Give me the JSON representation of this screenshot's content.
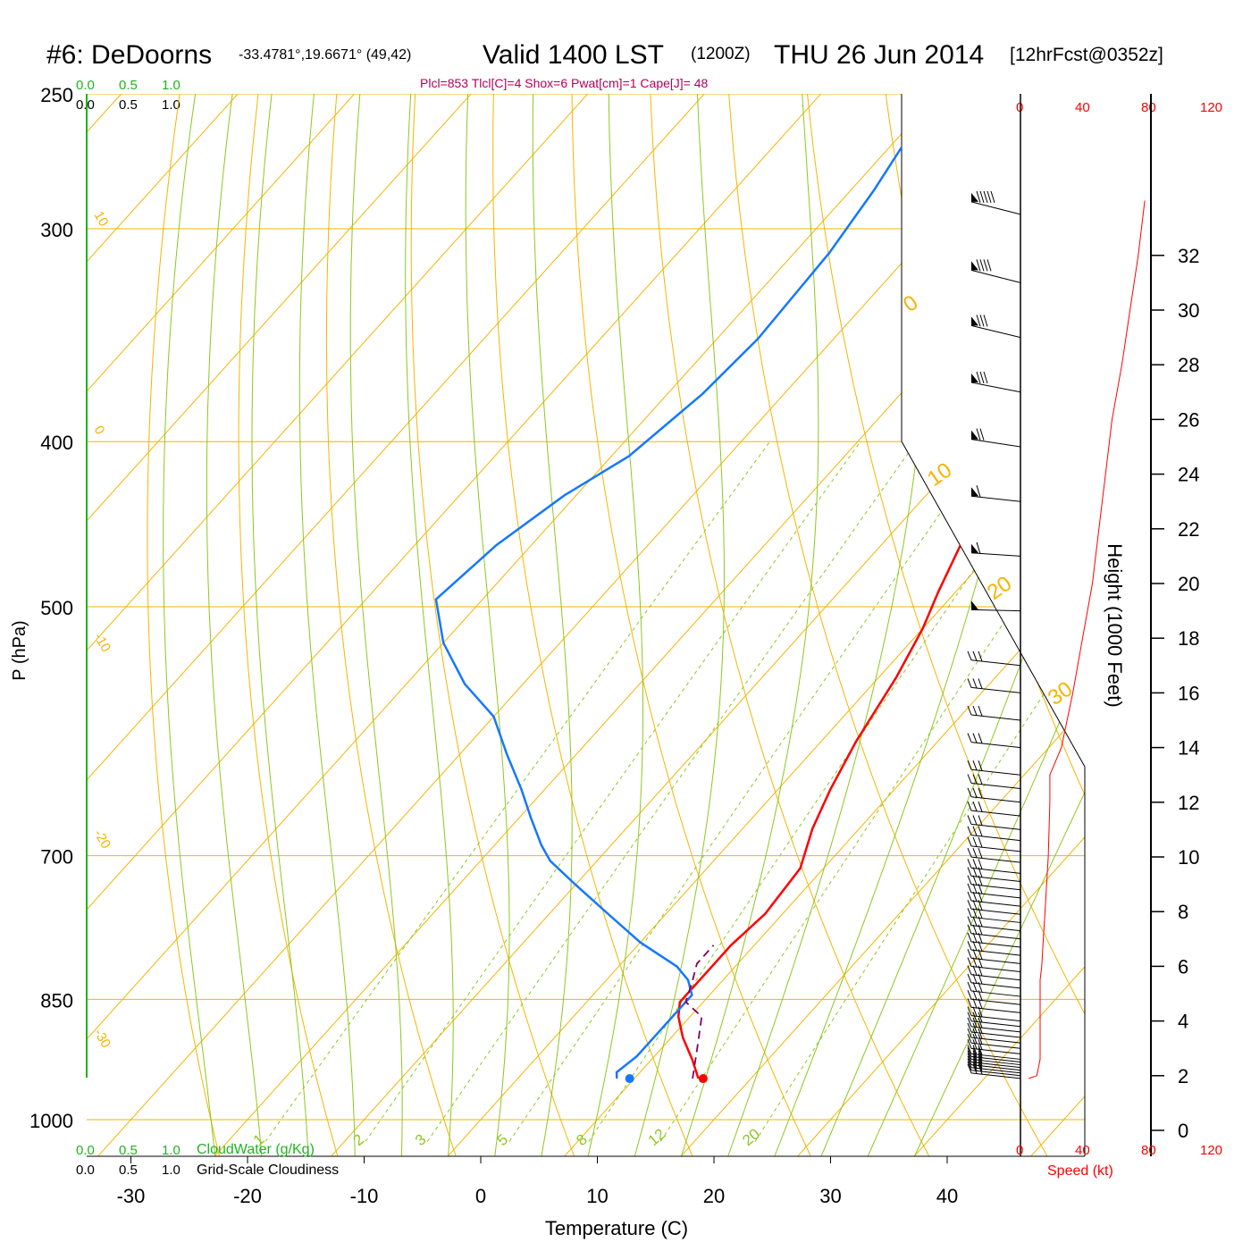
{
  "header": {
    "station": "#6: DeDoorns",
    "coords": "-33.4781°,19.6671° (49,42)",
    "valid": "Valid 1400 LST",
    "zulu": "(1200Z)",
    "date": "THU 26 Jun 2014",
    "fcst": "[12hrFcst@0352z]"
  },
  "indices": "Plcl=853 Tlcl[C]=4 Shox=6 Pwat[cm]=1 Cape[J]= 48",
  "scales": {
    "cloudwater_top": [
      "0.0",
      "0.5",
      "1.0"
    ],
    "cloudiness_top": [
      "0.0",
      "0.5",
      "1.0"
    ],
    "cloudwater_bottom": [
      "0.0",
      "0.5",
      "1.0"
    ],
    "cloudwater_label": "CloudWater (g/Kg)",
    "cloudiness_bottom": [
      "0.0",
      "0.5",
      "1.0"
    ],
    "cloudiness_label": "Grid-Scale Cloudiness",
    "speed_top": [
      "0",
      "40",
      "80",
      "120"
    ],
    "speed_bottom": [
      "0",
      "40",
      "80",
      "120"
    ],
    "speed_label": "Speed (kt)"
  },
  "colors": {
    "isotherm": "#f5b400",
    "dry_adiabat": "#8cc81e",
    "moist_adiabat": "#8cc81e",
    "mixing_ratio": "#8cc81e",
    "temperature": "#ff0000",
    "dewpoint": "#1478ff",
    "parcel": "#800060",
    "indices": "#b4005a",
    "cloudwater": "#1eb41e",
    "speed": "#ff0000"
  },
  "chart_data": {
    "type": "line",
    "subtype": "skew-T log-P sounding",
    "xlabel": "Temperature (C)",
    "ylabel": "P (hPa)",
    "y2label": "Height (1000 Feet)",
    "xlim": [
      -36,
      36
    ],
    "ylim": [
      1000,
      250
    ],
    "y_scale": "log",
    "x_ticks": [
      -30,
      -20,
      -10,
      0,
      10,
      20,
      30,
      40
    ],
    "p_ticks": [
      250,
      300,
      400,
      500,
      700,
      850,
      1000
    ],
    "height_ticks": [
      0,
      2,
      4,
      6,
      8,
      10,
      12,
      14,
      16,
      18,
      20,
      22,
      24,
      26,
      28,
      30,
      32
    ],
    "isotherm_labels": [
      "10",
      "0",
      "-10",
      "-20",
      "-30",
      "0",
      "10",
      "20",
      "30"
    ],
    "mixing_ratio_labels": [
      "1",
      "2",
      "3",
      "5",
      "8",
      "12",
      "20"
    ],
    "series": [
      {
        "name": "Temperature",
        "points": [
          [
            15.5,
            946
          ],
          [
            13.5,
            922
          ],
          [
            11,
            895
          ],
          [
            9,
            870
          ],
          [
            8,
            853
          ],
          [
            8,
            832
          ],
          [
            8,
            790
          ],
          [
            8.5,
            757
          ],
          [
            8,
            712
          ],
          [
            6,
            675
          ],
          [
            4.5,
            640
          ],
          [
            3,
            600
          ],
          [
            1.5,
            550
          ],
          [
            0,
            515
          ],
          [
            -1.5,
            490
          ],
          [
            -3.5,
            455
          ],
          [
            -5.5,
            425
          ],
          [
            -7.5,
            400
          ],
          [
            -9.5,
            378
          ],
          [
            -11.5,
            353
          ],
          [
            -13.5,
            330
          ],
          [
            -15.5,
            307
          ],
          [
            -17.5,
            287
          ],
          [
            -19.5,
            268
          ],
          [
            -20,
            252
          ]
        ]
      },
      {
        "name": "Dewpoint",
        "points": [
          [
            8.5,
            946
          ],
          [
            8,
            938
          ],
          [
            8.5,
            918
          ],
          [
            8.5,
            880
          ],
          [
            8.5,
            845
          ],
          [
            7,
            828
          ],
          [
            5,
            813
          ],
          [
            0,
            787
          ],
          [
            -5,
            757
          ],
          [
            -10,
            728
          ],
          [
            -14,
            705
          ],
          [
            -16,
            690
          ],
          [
            -19,
            665
          ],
          [
            -22,
            640
          ],
          [
            -26,
            610
          ],
          [
            -30,
            580
          ],
          [
            -35,
            555
          ],
          [
            -40,
            525
          ],
          [
            -44,
            495
          ],
          [
            -43,
            460
          ],
          [
            -41,
            430
          ],
          [
            -38.5,
            408
          ],
          [
            -37,
            375
          ],
          [
            -36.5,
            348
          ],
          [
            -37,
            310
          ],
          [
            -38,
            285
          ],
          [
            -39,
            268
          ],
          [
            -40,
            250
          ]
        ]
      },
      {
        "name": "Parcel",
        "points": [
          [
            15,
            946
          ],
          [
            13,
            907
          ],
          [
            11,
            870
          ],
          [
            8.5,
            853
          ],
          [
            7.5,
            830
          ],
          [
            6.5,
            810
          ],
          [
            6.5,
            790
          ]
        ]
      }
    ],
    "surface_markers": [
      {
        "name": "Temperature",
        "x": 15.9,
        "p": 946
      },
      {
        "name": "Dewpoint",
        "x": 9.6,
        "p": 946
      }
    ],
    "speed_profile_kt": [
      [
        1.9,
        5
      ],
      [
        2.0,
        10
      ],
      [
        2.6,
        12
      ],
      [
        4,
        12
      ],
      [
        5.5,
        12
      ],
      [
        6,
        13
      ],
      [
        7,
        14
      ],
      [
        8,
        15
      ],
      [
        9,
        16
      ],
      [
        10,
        17
      ],
      [
        11,
        17.5
      ],
      [
        12,
        18
      ],
      [
        13,
        18
      ],
      [
        14,
        25
      ],
      [
        16,
        32
      ],
      [
        18,
        38
      ],
      [
        20,
        44
      ],
      [
        22,
        48
      ],
      [
        24,
        52
      ],
      [
        26,
        56
      ],
      [
        28,
        62
      ],
      [
        30,
        67
      ],
      [
        32,
        72
      ],
      [
        34,
        76
      ]
    ],
    "wind_barb_heights_kft": [
      1.9,
      2.0,
      2.1,
      2.2,
      2.3,
      2.4,
      2.5,
      2.6,
      2.8,
      3.0,
      3.2,
      3.4,
      3.6,
      3.8,
      4.0,
      4.3,
      4.6,
      4.9,
      5.2,
      5.5,
      5.8,
      6.1,
      6.4,
      6.7,
      7.0,
      7.3,
      7.6,
      7.9,
      8.2,
      8.5,
      8.8,
      9.1,
      9.4,
      9.8,
      10.2,
      10.6,
      11,
      11.5,
      12,
      12.5,
      13,
      14,
      15,
      16,
      17,
      19,
      21,
      23,
      25,
      27,
      29,
      31,
      33.5
    ]
  }
}
